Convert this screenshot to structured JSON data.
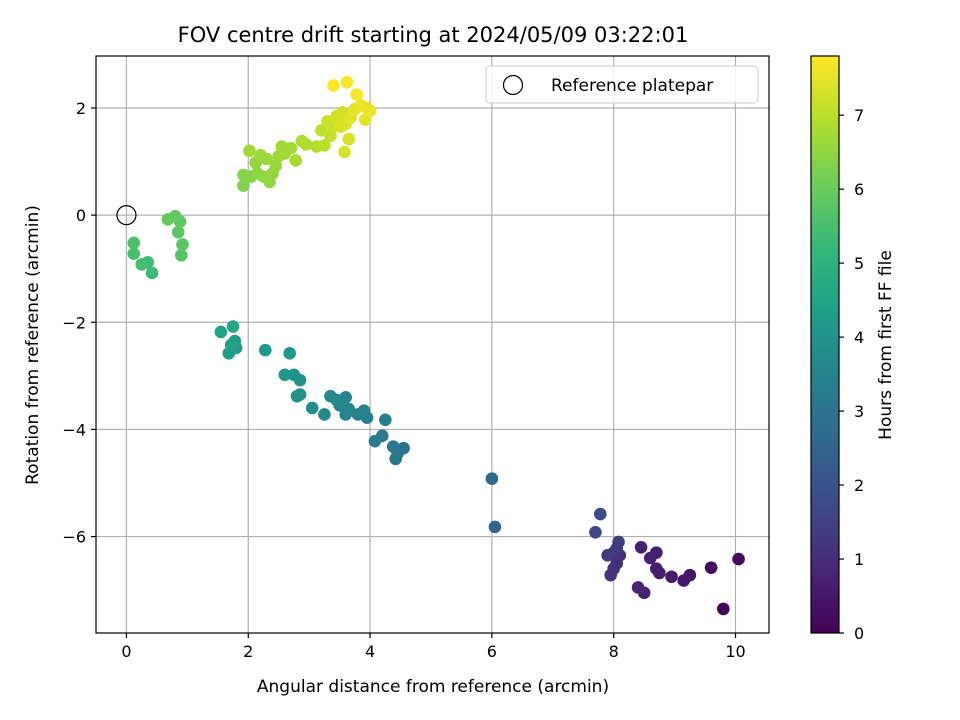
{
  "chart_data": {
    "type": "scatter",
    "title": "FOV centre drift starting at 2024/05/09 03:22:01",
    "xlabel": "Angular distance from reference (arcmin)",
    "ylabel": "Rotation from reference (arcmin)",
    "xlim": [
      -0.5,
      10.55
    ],
    "ylim": [
      -7.8,
      2.97
    ],
    "xticks": [
      0,
      2,
      4,
      6,
      8,
      10
    ],
    "yticks": [
      -6,
      -4,
      -2,
      0,
      2
    ],
    "grid": true,
    "legend": {
      "placement": "top-right",
      "entries": [
        "Reference platepar"
      ]
    },
    "reference_point": {
      "x": 0,
      "y": 0,
      "label": "Reference platepar",
      "marker": "open-circle"
    },
    "colorbar": {
      "label": "Hours from first FF file",
      "colormap": "viridis",
      "range": [
        0,
        7.8
      ],
      "ticks": [
        0,
        1,
        2,
        3,
        4,
        5,
        6,
        7
      ]
    },
    "points": [
      {
        "x": 9.8,
        "y": -7.35,
        "t": 0.1
      },
      {
        "x": 10.05,
        "y": -6.42,
        "t": 0.15
      },
      {
        "x": 9.6,
        "y": -6.58,
        "t": 0.2
      },
      {
        "x": 9.25,
        "y": -6.72,
        "t": 0.5
      },
      {
        "x": 9.15,
        "y": -6.82,
        "t": 0.5
      },
      {
        "x": 8.95,
        "y": -6.75,
        "t": 0.55
      },
      {
        "x": 8.7,
        "y": -6.6,
        "t": 0.6
      },
      {
        "x": 8.75,
        "y": -6.68,
        "t": 0.6
      },
      {
        "x": 8.7,
        "y": -6.3,
        "t": 0.65
      },
      {
        "x": 8.6,
        "y": -6.4,
        "t": 0.7
      },
      {
        "x": 8.45,
        "y": -6.2,
        "t": 0.7
      },
      {
        "x": 8.5,
        "y": -7.05,
        "t": 0.75
      },
      {
        "x": 8.4,
        "y": -6.95,
        "t": 0.8
      },
      {
        "x": 8.1,
        "y": -6.35,
        "t": 1.0
      },
      {
        "x": 8.05,
        "y": -6.5,
        "t": 1.05
      },
      {
        "x": 8.0,
        "y": -6.6,
        "t": 1.1
      },
      {
        "x": 7.95,
        "y": -6.72,
        "t": 1.15
      },
      {
        "x": 8.0,
        "y": -6.3,
        "t": 1.2
      },
      {
        "x": 7.9,
        "y": -6.35,
        "t": 1.3
      },
      {
        "x": 8.05,
        "y": -6.22,
        "t": 1.35
      },
      {
        "x": 8.08,
        "y": -6.1,
        "t": 1.4
      },
      {
        "x": 7.7,
        "y": -5.92,
        "t": 1.6
      },
      {
        "x": 7.78,
        "y": -5.58,
        "t": 1.8
      },
      {
        "x": 6.05,
        "y": -5.82,
        "t": 2.5
      },
      {
        "x": 6.0,
        "y": -4.92,
        "t": 2.6
      },
      {
        "x": 4.55,
        "y": -4.35,
        "t": 3.0
      },
      {
        "x": 4.45,
        "y": -4.45,
        "t": 3.05
      },
      {
        "x": 4.42,
        "y": -4.55,
        "t": 3.1
      },
      {
        "x": 4.38,
        "y": -4.32,
        "t": 3.15
      },
      {
        "x": 4.2,
        "y": -4.12,
        "t": 3.2
      },
      {
        "x": 4.08,
        "y": -4.22,
        "t": 3.25
      },
      {
        "x": 4.25,
        "y": -3.82,
        "t": 3.3
      },
      {
        "x": 3.95,
        "y": -3.78,
        "t": 3.35
      },
      {
        "x": 3.9,
        "y": -3.65,
        "t": 3.4
      },
      {
        "x": 3.8,
        "y": -3.72,
        "t": 3.45
      },
      {
        "x": 3.6,
        "y": -3.72,
        "t": 3.5
      },
      {
        "x": 3.65,
        "y": -3.62,
        "t": 3.55
      },
      {
        "x": 3.6,
        "y": -3.4,
        "t": 3.6
      },
      {
        "x": 3.5,
        "y": -3.55,
        "t": 3.62
      },
      {
        "x": 3.45,
        "y": -3.45,
        "t": 3.65
      },
      {
        "x": 3.35,
        "y": -3.38,
        "t": 3.7
      },
      {
        "x": 3.25,
        "y": -3.72,
        "t": 3.75
      },
      {
        "x": 3.05,
        "y": -3.6,
        "t": 3.8
      },
      {
        "x": 2.85,
        "y": -3.35,
        "t": 3.9
      },
      {
        "x": 2.8,
        "y": -3.38,
        "t": 3.95
      },
      {
        "x": 2.85,
        "y": -3.08,
        "t": 4.0
      },
      {
        "x": 2.75,
        "y": -2.98,
        "t": 4.05
      },
      {
        "x": 2.6,
        "y": -2.98,
        "t": 4.1
      },
      {
        "x": 2.68,
        "y": -2.58,
        "t": 4.15
      },
      {
        "x": 2.28,
        "y": -2.52,
        "t": 4.2
      },
      {
        "x": 1.8,
        "y": -2.48,
        "t": 4.3
      },
      {
        "x": 1.68,
        "y": -2.58,
        "t": 4.35
      },
      {
        "x": 1.78,
        "y": -2.35,
        "t": 4.4
      },
      {
        "x": 1.72,
        "y": -2.42,
        "t": 4.45
      },
      {
        "x": 1.55,
        "y": -2.18,
        "t": 4.5
      },
      {
        "x": 1.75,
        "y": -2.08,
        "t": 4.6
      },
      {
        "x": 0.42,
        "y": -1.08,
        "t": 5.3
      },
      {
        "x": 0.35,
        "y": -0.88,
        "t": 5.4
      },
      {
        "x": 0.25,
        "y": -0.92,
        "t": 5.45
      },
      {
        "x": 0.12,
        "y": -0.72,
        "t": 5.5
      },
      {
        "x": 0.12,
        "y": -0.52,
        "t": 5.55
      },
      {
        "x": 0.9,
        "y": -0.75,
        "t": 5.7
      },
      {
        "x": 0.92,
        "y": -0.55,
        "t": 5.75
      },
      {
        "x": 0.85,
        "y": -0.32,
        "t": 5.8
      },
      {
        "x": 0.88,
        "y": -0.12,
        "t": 5.85
      },
      {
        "x": 0.8,
        "y": -0.02,
        "t": 5.9
      },
      {
        "x": 0.68,
        "y": -0.08,
        "t": 5.95
      },
      {
        "x": 1.92,
        "y": 0.55,
        "t": 6.3
      },
      {
        "x": 1.92,
        "y": 0.75,
        "t": 6.35
      },
      {
        "x": 2.05,
        "y": 0.72,
        "t": 6.4
      },
      {
        "x": 2.15,
        "y": 0.78,
        "t": 6.45
      },
      {
        "x": 2.25,
        "y": 0.72,
        "t": 6.5
      },
      {
        "x": 2.35,
        "y": 0.62,
        "t": 6.5
      },
      {
        "x": 2.4,
        "y": 0.78,
        "t": 6.55
      },
      {
        "x": 2.12,
        "y": 0.98,
        "t": 6.55
      },
      {
        "x": 2.3,
        "y": 1.05,
        "t": 6.6
      },
      {
        "x": 2.45,
        "y": 0.92,
        "t": 6.6
      },
      {
        "x": 2.5,
        "y": 1.1,
        "t": 6.65
      },
      {
        "x": 2.2,
        "y": 1.12,
        "t": 6.65
      },
      {
        "x": 2.02,
        "y": 1.2,
        "t": 6.7
      },
      {
        "x": 2.55,
        "y": 1.28,
        "t": 6.7
      },
      {
        "x": 2.6,
        "y": 1.15,
        "t": 6.75
      },
      {
        "x": 2.7,
        "y": 1.25,
        "t": 6.75
      },
      {
        "x": 2.78,
        "y": 1.02,
        "t": 6.8
      },
      {
        "x": 2.88,
        "y": 1.38,
        "t": 6.85
      },
      {
        "x": 2.95,
        "y": 1.32,
        "t": 6.9
      },
      {
        "x": 3.12,
        "y": 1.28,
        "t": 6.95
      },
      {
        "x": 3.25,
        "y": 1.3,
        "t": 7.0
      },
      {
        "x": 3.2,
        "y": 1.58,
        "t": 7.05
      },
      {
        "x": 3.35,
        "y": 1.48,
        "t": 7.1
      },
      {
        "x": 3.4,
        "y": 1.65,
        "t": 7.15
      },
      {
        "x": 3.3,
        "y": 1.75,
        "t": 7.2
      },
      {
        "x": 3.45,
        "y": 1.85,
        "t": 7.25
      },
      {
        "x": 3.55,
        "y": 1.92,
        "t": 7.3
      },
      {
        "x": 3.58,
        "y": 1.18,
        "t": 7.35
      },
      {
        "x": 3.65,
        "y": 1.42,
        "t": 7.35
      },
      {
        "x": 3.6,
        "y": 1.7,
        "t": 7.4
      },
      {
        "x": 3.52,
        "y": 1.65,
        "t": 7.4
      },
      {
        "x": 3.68,
        "y": 1.82,
        "t": 7.45
      },
      {
        "x": 3.75,
        "y": 1.98,
        "t": 7.5
      },
      {
        "x": 3.92,
        "y": 1.78,
        "t": 7.5
      },
      {
        "x": 3.95,
        "y": 2.0,
        "t": 7.55
      },
      {
        "x": 4.0,
        "y": 1.95,
        "t": 7.6
      },
      {
        "x": 3.85,
        "y": 2.05,
        "t": 7.6
      },
      {
        "x": 3.78,
        "y": 2.25,
        "t": 7.7
      },
      {
        "x": 3.62,
        "y": 2.48,
        "t": 7.75
      },
      {
        "x": 3.4,
        "y": 2.42,
        "t": 7.8
      }
    ]
  }
}
